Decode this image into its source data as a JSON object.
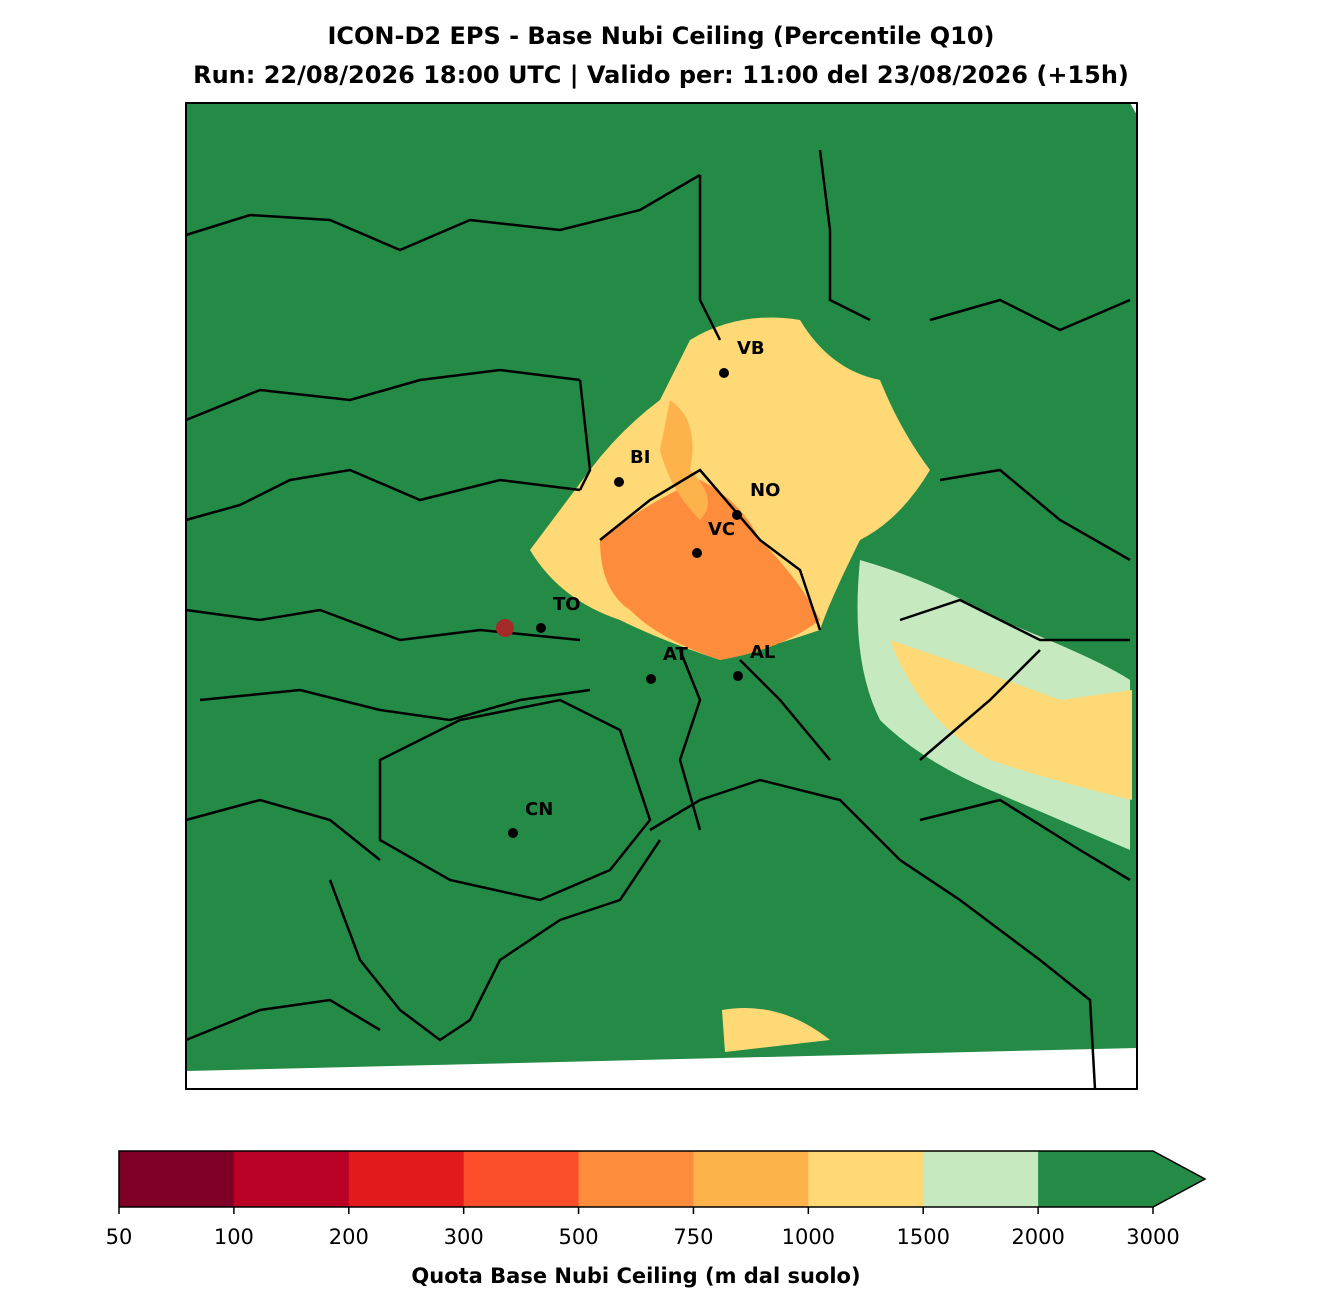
{
  "header": {
    "title": "ICON-D2 EPS - Base Nubi Ceiling (Percentile Q10)",
    "subtitle": "Run: 22/08/2026 18:00 UTC | Valido per: 11:00 del 23/08/2026 (+15h)"
  },
  "map": {
    "cities": [
      "VB",
      "BI",
      "NO",
      "VC",
      "TO",
      "AT",
      "AL",
      "CN"
    ]
  },
  "colorbar": {
    "ticks": [
      50,
      100,
      200,
      300,
      500,
      750,
      1000,
      1500,
      2000,
      3000
    ],
    "colors": [
      "#7f0026",
      "#bb0026",
      "#e31a1c",
      "#fc4e2a",
      "#fd8d3c",
      "#feb24c",
      "#fed976",
      "#c7e9c0",
      "#238b45"
    ],
    "extend": "max",
    "label": "Quota Base Nubi Ceiling (m dal suolo)"
  }
}
